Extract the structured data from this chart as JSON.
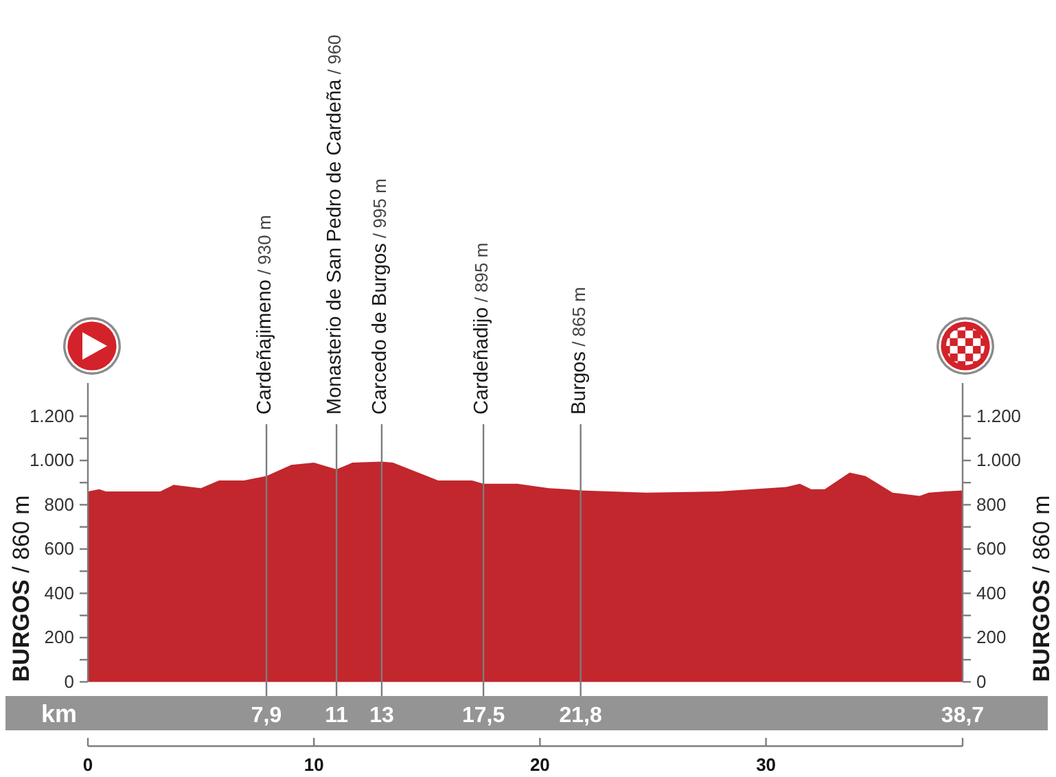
{
  "chart_data": {
    "type": "area",
    "ylabel": "BURGOS / 860 m",
    "y2label": "BURGOS / 860 m",
    "x2label": "km",
    "color": "#c1272d",
    "x": [
      0,
      0.5,
      0.8,
      3.2,
      3.8,
      5,
      5.8,
      6.9,
      7.9,
      9,
      10,
      11,
      11.7,
      13,
      13.5,
      15.5,
      17,
      17.5,
      19,
      20.4,
      21.2,
      21.8,
      24.7,
      27.9,
      30.9,
      31.5,
      32,
      32.6,
      33.7,
      34.4,
      35.6,
      36.8,
      37.2,
      37.9,
      38.7
    ],
    "values": [
      860,
      870,
      860,
      860,
      890,
      875,
      910,
      910,
      930,
      980,
      990,
      960,
      990,
      995,
      990,
      910,
      910,
      895,
      895,
      875,
      870,
      865,
      855,
      860,
      880,
      895,
      870,
      870,
      945,
      930,
      855,
      840,
      855,
      860,
      865
    ],
    "xlim": [
      0,
      38.7
    ],
    "xticks": [
      0,
      10,
      20,
      30,
      {
        "value": 38.7,
        "label": null
      }
    ],
    "x2lim": [
      0,
      38.7
    ],
    "x2ticks": [
      {
        "value": 7.9,
        "label": "7,9"
      },
      11,
      13,
      {
        "value": 17.5,
        "label": "17,5"
      },
      {
        "value": 21.8,
        "label": "21,8"
      },
      {
        "value": 38.7,
        "label": "38,7"
      }
    ],
    "ylim": [
      0,
      1350
    ],
    "yticks": [
      0,
      {
        "value": 100,
        "label": null
      },
      200,
      {
        "value": 300,
        "label": null
      },
      400,
      {
        "value": 500,
        "label": null
      },
      600,
      {
        "value": 700,
        "label": null
      },
      800,
      {
        "value": 900,
        "label": null
      },
      {
        "value": 1000,
        "label": "1.000"
      },
      {
        "value": 1100,
        "label": null
      },
      {
        "value": 1200,
        "label": "1.200"
      }
    ],
    "y2lim": [
      0,
      1350
    ],
    "y2ticks": [
      0,
      {
        "value": 100,
        "label": null
      },
      200,
      {
        "value": 300,
        "label": null
      },
      400,
      {
        "value": 500,
        "label": null
      },
      600,
      {
        "value": 700,
        "label": null
      },
      800,
      {
        "value": 900,
        "label": null
      },
      {
        "value": 1000,
        "label": "1.000"
      },
      {
        "value": 1100,
        "label": null
      },
      {
        "value": 1200,
        "label": "1.200"
      }
    ],
    "ref_lines": [
      {
        "axis": "x",
        "value": 7.9,
        "label": "Cardeñajimeno / 930 m"
      },
      {
        "axis": "x",
        "value": 11,
        "label": "Monasterio de San Pedro de Cardeña / 960"
      },
      {
        "axis": "x",
        "value": 13,
        "label": "Carcedo de Burgos / 995 m"
      },
      {
        "axis": "x",
        "value": 17.5,
        "label": "Cardeñadijo / 895 m"
      },
      {
        "axis": "x",
        "value": 21.8,
        "label": "Burgos / 865 m"
      }
    ]
  }
}
